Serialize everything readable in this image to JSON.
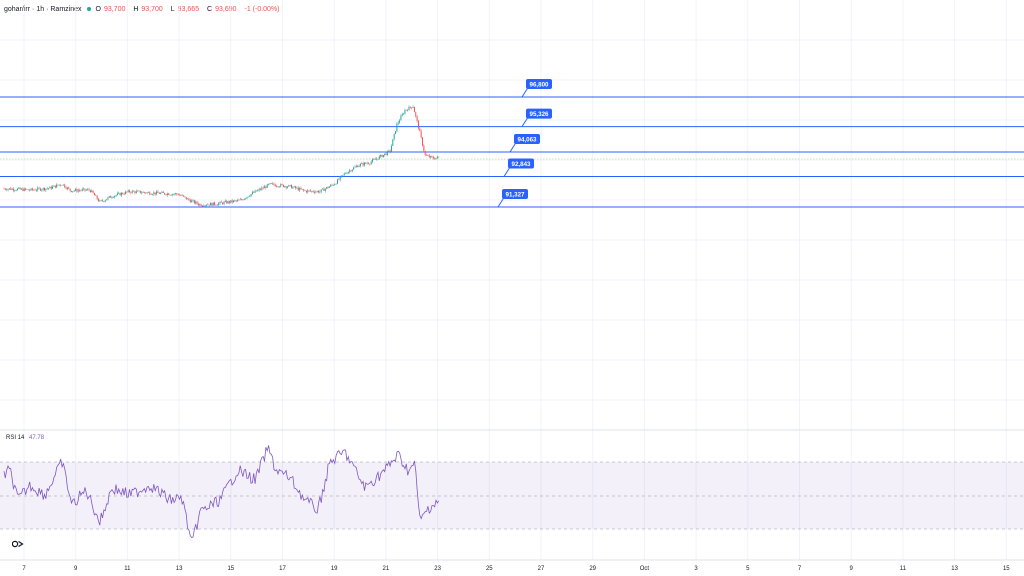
{
  "header": {
    "symbol": "gohar/irr",
    "interval": "1h",
    "exchange": "Ramzinex",
    "separator": "·",
    "ohlc": [
      {
        "key": "O",
        "value": "93,700"
      },
      {
        "key": "H",
        "value": "93,700"
      },
      {
        "key": "L",
        "value": "93,665"
      },
      {
        "key": "C",
        "value": "93,690"
      },
      {
        "key": "change",
        "value": "-1 (-0.00%)"
      }
    ]
  },
  "price_levels": [
    {
      "label": "96,800",
      "value": 96800
    },
    {
      "label": "95,326",
      "value": 95326
    },
    {
      "label": "94,063",
      "value": 94063
    },
    {
      "label": "92,843",
      "value": 92843
    },
    {
      "label": "91,327",
      "value": 91327
    }
  ],
  "indicator": {
    "name": "RSI",
    "length": "14",
    "value": "47.78"
  },
  "x_axis_labels": [
    "7",
    "9",
    "11",
    "13",
    "15",
    "17",
    "19",
    "21",
    "23",
    "25",
    "27",
    "29",
    "Oct",
    "3",
    "5",
    "7",
    "9",
    "11",
    "13",
    "15"
  ],
  "colors": {
    "up": "#26a69a",
    "down": "#ef5350",
    "level_line": "#2962ff",
    "rsi_line": "#7e57c2",
    "rsi_band": "#7e57c2"
  },
  "logo_icon": "tradingview-logo-icon"
}
